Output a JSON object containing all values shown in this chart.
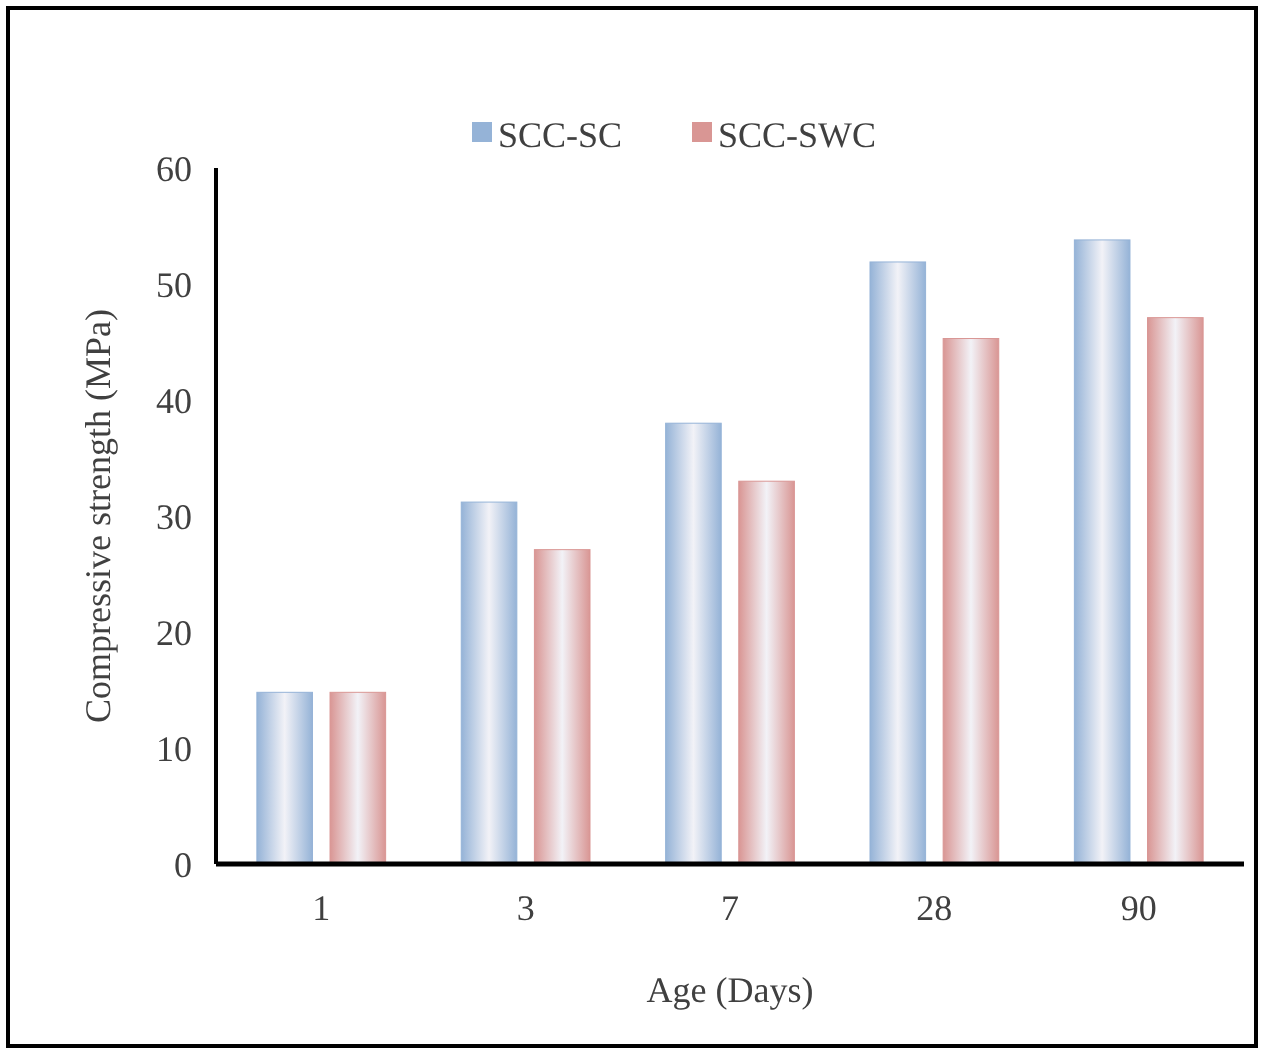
{
  "chart_data": {
    "type": "bar",
    "xlabel": "Age (Days)",
    "ylabel": "Compressive strength (MPa)",
    "categories": [
      "1",
      "3",
      "7",
      "28",
      "90"
    ],
    "series": [
      {
        "name": "SCC-SC",
        "color": "#95b3d7",
        "values": [
          14.8,
          31.2,
          38.0,
          51.9,
          53.8
        ]
      },
      {
        "name": "SCC-SWC",
        "color": "#d99694",
        "values": [
          14.8,
          27.1,
          33.0,
          45.3,
          47.1
        ]
      }
    ],
    "ylim": [
      0,
      60
    ],
    "yticks": [
      0,
      10,
      20,
      30,
      40,
      50,
      60
    ],
    "grid": false,
    "legend": "top"
  }
}
